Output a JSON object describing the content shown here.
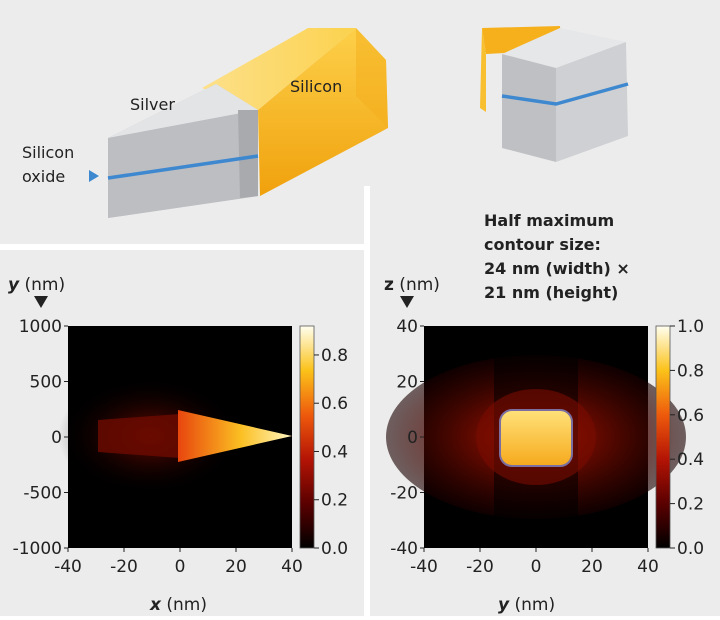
{
  "schematic": {
    "labels": {
      "silver": "Silver",
      "silicon": "Silicon",
      "silicon_oxide_line1": "Silicon",
      "silicon_oxide_line2": "oxide"
    },
    "colors": {
      "panel_bg": "#ececec",
      "silver_face": "#c8c9cc",
      "silicon_face": "#f7b51e",
      "oxide_line": "#3e88d0"
    }
  },
  "left_plot": {
    "chart_data": {
      "type": "heatmap",
      "x_label_var": "x",
      "x_label_unit": " (nm)",
      "y_label_var": "y",
      "y_label_unit": " (nm)",
      "x_ticks": [
        "-40",
        "-20",
        "0",
        "20",
        "40"
      ],
      "y_ticks": [
        "1000",
        "500",
        "0",
        "-500",
        "-1000"
      ],
      "xlim": [
        -40,
        40
      ],
      "ylim": [
        -1000,
        1000
      ],
      "colorbar_ticks": [
        "0.8",
        "0.6",
        "0.4",
        "0.2",
        "0.0"
      ],
      "colorbar_range": [
        0,
        0.92
      ]
    }
  },
  "right_plot": {
    "annotation": {
      "line1": "Half maximum",
      "line2": "contour size:",
      "line3": "24 nm (width) ×",
      "line4": "21 nm (height)"
    },
    "chart_data": {
      "type": "heatmap",
      "x_label_var": "y",
      "x_label_unit": " (nm)",
      "y_label_var": "z",
      "y_label_unit": " (nm)",
      "x_ticks": [
        "-40",
        "-20",
        "0",
        "20",
        "40"
      ],
      "y_ticks": [
        "40",
        "20",
        "0",
        "-20",
        "-40"
      ],
      "xlim": [
        -40,
        40
      ],
      "ylim": [
        -40,
        40
      ],
      "colorbar_ticks": [
        "1.0",
        "0.8",
        "0.6",
        "0.4",
        "0.2",
        "0.0"
      ],
      "colorbar_range": [
        0,
        1.0
      ],
      "contour_width_nm": 24,
      "contour_height_nm": 21
    }
  }
}
